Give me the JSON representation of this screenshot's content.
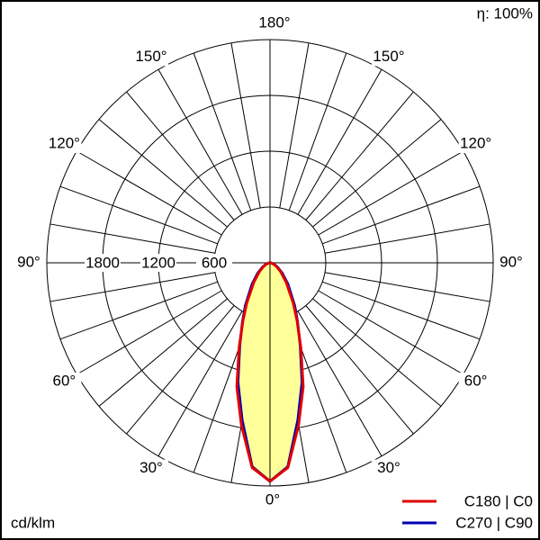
{
  "chart_data": {
    "type": "polar",
    "annotation": "η: 100%",
    "unit_label": "cd/klm",
    "rlim": [
      0,
      2400
    ],
    "rticks": [
      600,
      1200,
      1800
    ],
    "angle_ticks": [
      {
        "value": 0,
        "label": "0°"
      },
      {
        "value": 30,
        "label": "30°"
      },
      {
        "value": 60,
        "label": "60°"
      },
      {
        "value": 90,
        "label": "90°"
      },
      {
        "value": 120,
        "label": "120°"
      },
      {
        "value": 150,
        "label": "150°"
      },
      {
        "value": 180,
        "label": "180°"
      }
    ],
    "x": [
      0,
      5,
      10,
      15,
      20,
      25,
      30,
      40,
      50,
      60,
      70,
      80,
      90
    ],
    "fill_color": "#ffff99",
    "series": [
      {
        "name": "C180 | C0",
        "color": "#e00000",
        "values": [
          2350,
          2210,
          1770,
          1380,
          970,
          690,
          500,
          270,
          150,
          80,
          40,
          20,
          0
        ]
      },
      {
        "name": "C270 | C90",
        "color": "#0000b0",
        "values": [
          2350,
          2200,
          1720,
          1330,
          950,
          700,
          530,
          300,
          170,
          90,
          45,
          20,
          0
        ]
      }
    ]
  }
}
